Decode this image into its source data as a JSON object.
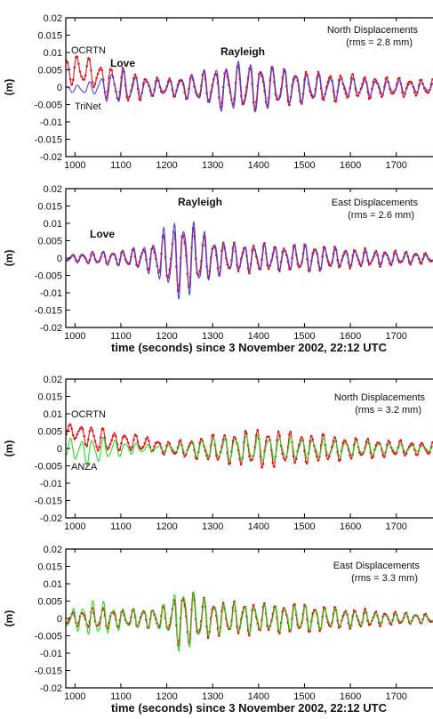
{
  "chart_data": [
    {
      "type": "line",
      "xlim": [
        980,
        1780
      ],
      "ylim": [
        -0.02,
        0.02
      ],
      "x_ticks": [
        "1000",
        "1100",
        "1200",
        "1300",
        "1400",
        "1500",
        "1600",
        "1700"
      ],
      "y_ticks": [
        "0.02",
        "0.015",
        "0.01",
        "0.005",
        "0",
        "-0.005",
        "-0.01",
        "-0.015",
        "-0.02"
      ],
      "ylabel": "(m)",
      "xlabel": "",
      "annotations": {
        "component": "North Displacements",
        "rms": "(rms = 2.8 mm)",
        "station_gps": "OCRTN",
        "station_ref": "TriNet",
        "phase_love": "Love",
        "phase_rayleigh": "Rayleigh"
      },
      "series": [
        {
          "color": "#e8171c",
          "style": "markers",
          "x": [
            990,
            1020,
            1050,
            1080,
            1110,
            1140,
            1170,
            1200,
            1230,
            1260,
            1290,
            1320,
            1350,
            1380,
            1410,
            1440,
            1470,
            1500,
            1530,
            1560,
            1590,
            1620,
            1650,
            1680,
            1710,
            1740,
            1770
          ],
          "amplitude": [
            0.0045,
            0.0045,
            0.004,
            0.0055,
            0.0055,
            0.004,
            0.003,
            0.0025,
            0.0035,
            0.004,
            0.005,
            0.006,
            0.0065,
            0.007,
            0.0065,
            0.006,
            0.0055,
            0.005,
            0.0045,
            0.0045,
            0.004,
            0.0035,
            0.0035,
            0.003,
            0.003,
            0.0025,
            0.0025
          ],
          "offset": [
            0.005,
            0.005,
            0.003,
            0.001,
            0.0,
            0.0,
            0.0,
            0.0,
            0.0,
            0.0,
            0.0,
            0.0,
            0.0,
            0.0,
            0.0,
            0.0,
            0.0,
            0.0,
            0.0,
            0.0,
            0.0,
            0.0,
            0.0,
            0.0,
            0.0,
            0.0,
            0.0
          ],
          "period_s": 25
        },
        {
          "color": "#4646e6",
          "style": "line",
          "x": [
            990,
            1020,
            1050,
            1080,
            1110,
            1140,
            1170,
            1200,
            1230,
            1260,
            1290,
            1320,
            1350,
            1380,
            1410,
            1440,
            1470,
            1500,
            1530,
            1560,
            1590,
            1620,
            1650,
            1680,
            1710,
            1740,
            1770
          ],
          "amplitude": [
            0.001,
            0.0015,
            0.0025,
            0.005,
            0.005,
            0.003,
            0.0025,
            0.002,
            0.003,
            0.004,
            0.0055,
            0.007,
            0.0075,
            0.0075,
            0.007,
            0.006,
            0.005,
            0.0045,
            0.004,
            0.0035,
            0.003,
            0.0025,
            0.0025,
            0.002,
            0.002,
            0.0015,
            0.0015
          ],
          "offset": [
            -0.0005,
            -0.0005,
            0.0,
            0.0,
            0.0,
            0.0,
            0.0,
            0.0,
            0.0,
            0.0,
            0.0,
            0.0,
            0.0,
            0.0,
            0.0,
            0.0,
            0.0,
            0.0,
            0.0,
            0.0,
            0.0,
            0.0,
            0.0,
            0.0,
            0.0,
            0.0,
            0.0
          ],
          "period_s": 25
        }
      ]
    },
    {
      "type": "line",
      "xlim": [
        980,
        1780
      ],
      "ylim": [
        -0.02,
        0.02
      ],
      "x_ticks": [
        "1000",
        "1100",
        "1200",
        "1300",
        "1400",
        "1500",
        "1600",
        "1700"
      ],
      "y_ticks": [
        "0.02",
        "0.015",
        "0.01",
        "0.005",
        "0",
        "-0.005",
        "-0.01",
        "-0.015",
        "-0.02"
      ],
      "ylabel": "(m)",
      "xlabel": "time (seconds) since 3 November 2002, 22:12 UTC",
      "annotations": {
        "component": "East Displacements",
        "rms": "(rms = 2.6 mm)",
        "phase_love": "Love",
        "phase_rayleigh": "Rayleigh"
      },
      "series": [
        {
          "color": "#e8171c",
          "style": "markers",
          "x": [
            990,
            1020,
            1050,
            1080,
            1110,
            1140,
            1170,
            1200,
            1230,
            1260,
            1290,
            1320,
            1350,
            1380,
            1410,
            1440,
            1470,
            1500,
            1530,
            1560,
            1590,
            1620,
            1650,
            1680,
            1710,
            1740,
            1770
          ],
          "amplitude": [
            0.001,
            0.0015,
            0.002,
            0.002,
            0.0025,
            0.003,
            0.004,
            0.008,
            0.0105,
            0.009,
            0.006,
            0.005,
            0.0045,
            0.0045,
            0.0045,
            0.004,
            0.004,
            0.0045,
            0.004,
            0.0035,
            0.003,
            0.003,
            0.0025,
            0.0025,
            0.002,
            0.002,
            0.0015
          ],
          "offset": [
            0.0,
            0.0,
            0.0,
            0.0,
            0.0,
            0.0,
            0.0,
            0.0,
            0.0,
            0.0,
            0.0,
            0.0,
            0.0,
            0.0,
            0.0,
            0.0,
            0.0,
            0.0,
            0.0,
            0.0,
            0.0,
            0.0,
            0.0,
            0.0,
            0.0,
            0.0,
            0.0
          ],
          "period_s": 22
        },
        {
          "color": "#4646e6",
          "style": "line",
          "x": [
            990,
            1020,
            1050,
            1080,
            1110,
            1140,
            1170,
            1200,
            1230,
            1260,
            1290,
            1320,
            1350,
            1380,
            1410,
            1440,
            1470,
            1500,
            1530,
            1560,
            1590,
            1620,
            1650,
            1680,
            1710,
            1740,
            1770
          ],
          "amplitude": [
            0.001,
            0.0015,
            0.002,
            0.002,
            0.0025,
            0.0035,
            0.005,
            0.01,
            0.0125,
            0.011,
            0.007,
            0.005,
            0.004,
            0.004,
            0.004,
            0.0035,
            0.0035,
            0.004,
            0.0035,
            0.003,
            0.0025,
            0.0025,
            0.002,
            0.002,
            0.0015,
            0.0015,
            0.001
          ],
          "offset": [
            0.0,
            0.0,
            0.0,
            0.0,
            0.0,
            0.0,
            0.0,
            0.0,
            0.0,
            0.0,
            0.0,
            0.0,
            0.0,
            0.0,
            0.0,
            0.0,
            0.0,
            0.0,
            0.0,
            0.0,
            0.0,
            0.0,
            0.0,
            0.0,
            0.0,
            0.0,
            0.0
          ],
          "period_s": 22
        }
      ]
    },
    {
      "type": "line",
      "xlim": [
        980,
        1780
      ],
      "ylim": [
        -0.02,
        0.02
      ],
      "x_ticks": [
        "1000",
        "1100",
        "1200",
        "1300",
        "1400",
        "1500",
        "1600",
        "1700"
      ],
      "y_ticks": [
        "0.02",
        "0.015",
        "0.01",
        "0.005",
        "0",
        "-0.005",
        "-0.01",
        "-0.015",
        "-0.02"
      ],
      "ylabel": "(m)",
      "xlabel": "",
      "annotations": {
        "component": "North Displacements",
        "rms": "(rms = 3.2 mm)",
        "station_gps": "OCRTN",
        "station_ref": "ANZA"
      },
      "series": [
        {
          "color": "#e8171c",
          "style": "markers",
          "x": [
            990,
            1020,
            1050,
            1080,
            1110,
            1140,
            1170,
            1200,
            1230,
            1260,
            1290,
            1320,
            1350,
            1380,
            1410,
            1440,
            1470,
            1500,
            1530,
            1560,
            1590,
            1620,
            1650,
            1680,
            1710,
            1740,
            1770
          ],
          "amplitude": [
            0.002,
            0.003,
            0.004,
            0.003,
            0.0025,
            0.0025,
            0.002,
            0.002,
            0.0025,
            0.003,
            0.004,
            0.0045,
            0.005,
            0.0055,
            0.006,
            0.0055,
            0.005,
            0.0045,
            0.0045,
            0.004,
            0.0035,
            0.003,
            0.003,
            0.0025,
            0.0025,
            0.002,
            0.002
          ],
          "offset": [
            0.005,
            0.004,
            0.0025,
            0.002,
            0.002,
            0.0015,
            0.001,
            0.0,
            0.0,
            0.0,
            0.0,
            0.0,
            0.0,
            0.0,
            0.0,
            0.0,
            0.0,
            0.0,
            0.0,
            0.0,
            0.0,
            0.0,
            0.0,
            0.0,
            0.0,
            0.0,
            0.0
          ],
          "period_s": 24
        },
        {
          "color": "#22dd22",
          "style": "line",
          "x": [
            990,
            1020,
            1050,
            1080,
            1110,
            1140,
            1170,
            1200,
            1230,
            1260,
            1290,
            1320,
            1350,
            1380,
            1410,
            1440,
            1470,
            1500,
            1530,
            1560,
            1590,
            1620,
            1650,
            1680,
            1710,
            1740,
            1770
          ],
          "amplitude": [
            0.003,
            0.004,
            0.004,
            0.003,
            0.002,
            0.0015,
            0.001,
            0.001,
            0.0015,
            0.0025,
            0.003,
            0.0035,
            0.004,
            0.004,
            0.004,
            0.0035,
            0.0035,
            0.003,
            0.003,
            0.0025,
            0.0025,
            0.002,
            0.002,
            0.0015,
            0.0015,
            0.001,
            0.001
          ],
          "offset": [
            0.0,
            -0.001,
            -0.0005,
            0.0,
            0.0,
            0.0,
            0.0,
            0.0,
            0.0,
            0.0,
            0.0,
            0.0,
            0.0,
            0.0,
            0.0,
            0.0,
            0.0,
            0.0,
            0.0,
            0.0,
            0.0,
            0.0,
            0.0,
            0.0,
            0.0,
            0.0,
            0.0
          ],
          "period_s": 24
        }
      ]
    },
    {
      "type": "line",
      "xlim": [
        980,
        1780
      ],
      "ylim": [
        -0.02,
        0.02
      ],
      "x_ticks": [
        "1000",
        "1100",
        "1200",
        "1300",
        "1400",
        "1500",
        "1600",
        "1700"
      ],
      "y_ticks": [
        "0.02",
        "0.015",
        "0.01",
        "0.005",
        "0",
        "-0.005",
        "-0.01",
        "-0.015",
        "-0.02"
      ],
      "ylabel": "(m)",
      "xlabel": "time (seconds) since 3 November 2002, 22:12 UTC",
      "annotations": {
        "component": "East Displacements",
        "rms": "(rms = 3.3 mm)"
      },
      "series": [
        {
          "color": "#e8171c",
          "style": "markers",
          "x": [
            990,
            1020,
            1050,
            1080,
            1110,
            1140,
            1170,
            1200,
            1230,
            1260,
            1290,
            1320,
            1350,
            1380,
            1410,
            1440,
            1470,
            1500,
            1530,
            1560,
            1590,
            1620,
            1650,
            1680,
            1710,
            1740,
            1770
          ],
          "amplitude": [
            0.002,
            0.0025,
            0.0035,
            0.003,
            0.0025,
            0.003,
            0.003,
            0.004,
            0.009,
            0.0075,
            0.006,
            0.005,
            0.005,
            0.005,
            0.0045,
            0.0045,
            0.0045,
            0.0045,
            0.004,
            0.0035,
            0.003,
            0.003,
            0.0025,
            0.002,
            0.002,
            0.0015,
            0.0015
          ],
          "offset": [
            0.0,
            0.0,
            0.0,
            0.0,
            0.0,
            0.0,
            0.0,
            0.0,
            0.0,
            0.0,
            0.0,
            0.0,
            0.0,
            0.0,
            0.0,
            0.0,
            0.0,
            0.0,
            0.0,
            0.0,
            0.0,
            0.0,
            0.0,
            0.0,
            0.0,
            0.0,
            0.0
          ],
          "period_s": 22
        },
        {
          "color": "#22dd22",
          "style": "line",
          "x": [
            990,
            1020,
            1050,
            1080,
            1110,
            1140,
            1170,
            1200,
            1230,
            1260,
            1290,
            1320,
            1350,
            1380,
            1410,
            1440,
            1470,
            1500,
            1530,
            1560,
            1590,
            1620,
            1650,
            1680,
            1710,
            1740,
            1770
          ],
          "amplitude": [
            0.003,
            0.0045,
            0.006,
            0.004,
            0.003,
            0.003,
            0.003,
            0.0045,
            0.0105,
            0.008,
            0.0055,
            0.0045,
            0.0045,
            0.0045,
            0.004,
            0.004,
            0.004,
            0.004,
            0.0035,
            0.003,
            0.0025,
            0.0025,
            0.002,
            0.0015,
            0.0015,
            0.0015,
            0.001
          ],
          "offset": [
            0.0,
            0.0,
            0.0,
            0.0,
            0.0,
            0.0,
            0.0,
            0.0,
            0.0,
            0.0,
            0.0,
            0.0,
            0.0,
            0.0,
            0.0,
            0.0,
            0.0,
            0.0,
            0.0,
            0.0,
            0.0,
            0.0,
            0.0,
            0.0,
            0.0,
            0.0,
            0.0
          ],
          "period_s": 22
        }
      ]
    }
  ]
}
